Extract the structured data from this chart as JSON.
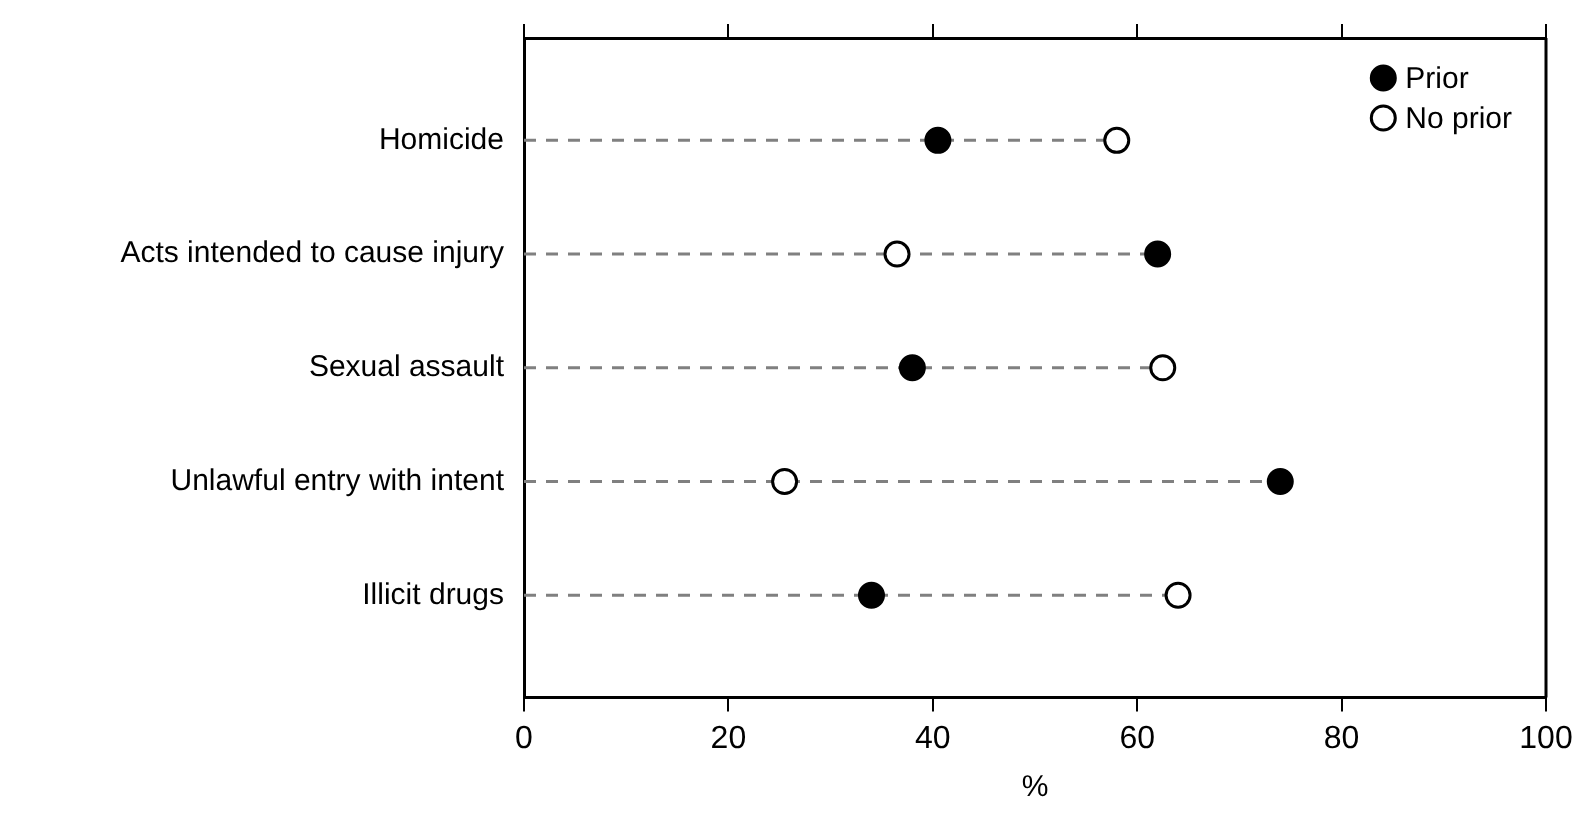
{
  "chart_data": {
    "type": "lollipop",
    "orientation": "horizontal",
    "xlabel": "%",
    "categories": [
      "Homicide",
      "Acts intended to cause injury",
      "Sexual assault",
      "Unlawful entry with intent",
      "Illicit drugs"
    ],
    "series": [
      {
        "name": "Prior",
        "color": "#000000",
        "values": [
          40.5,
          62,
          38,
          74,
          34
        ]
      },
      {
        "name": "No prior",
        "color": "#ffffff",
        "values": [
          58,
          36.5,
          62.5,
          25.5,
          64
        ]
      }
    ],
    "xlim": [
      0,
      100
    ],
    "xticks": [
      0,
      20,
      40,
      60,
      80,
      100
    ],
    "grid": false,
    "legend": "top right",
    "marker": "circle",
    "line_style": "dashed"
  }
}
